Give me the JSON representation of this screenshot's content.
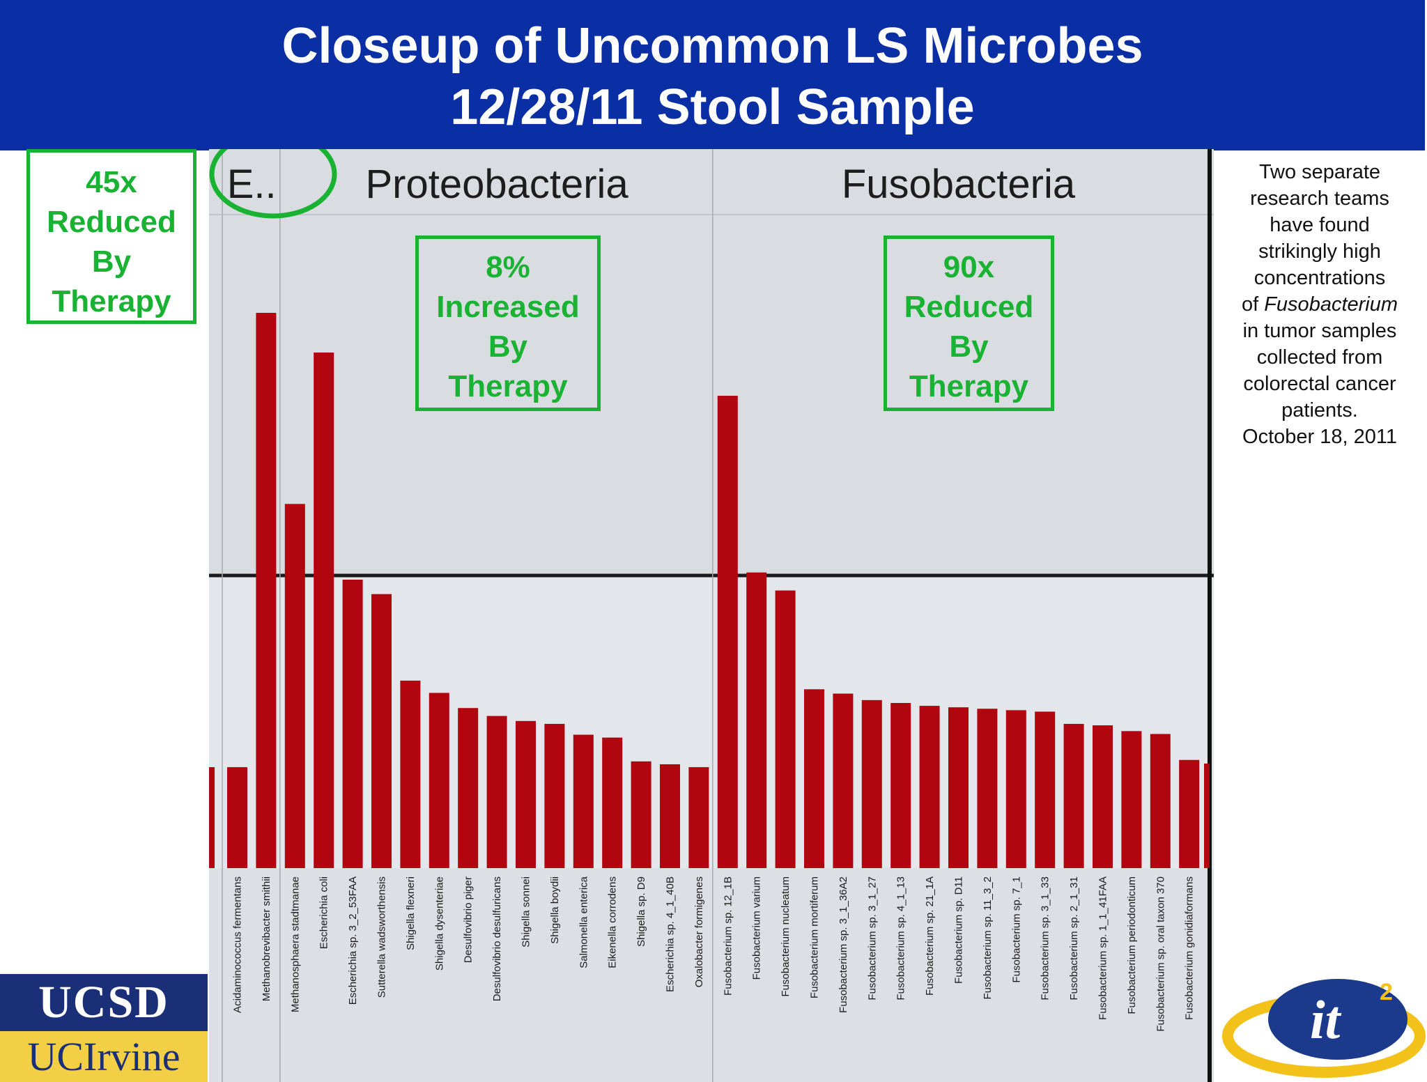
{
  "header": {
    "title_line1": "Closeup of Uncommon LS Microbes",
    "title_line2": "12/28/11 Stool Sample",
    "background_color": "#0a2ea4"
  },
  "callouts": {
    "left": [
      "45x",
      "Reduced",
      "By",
      "Therapy"
    ],
    "proteobacteria": [
      "8%",
      "Increased",
      "By",
      "Therapy"
    ],
    "fusobacteria": [
      "90x",
      "Reduced",
      "By",
      "Therapy"
    ],
    "color": "#19b233"
  },
  "side_note": {
    "line1": "Two separate",
    "line2": "research teams",
    "line3": "have found",
    "line4": "strikingly high",
    "line5": "concentrations",
    "line6_prefix": "of ",
    "line6_italic": "Fusobacterium",
    "line7": "in tumor samples",
    "line8": "collected from",
    "line9": "colorectal cancer",
    "line10": "patients.",
    "line11": "October 18, 2011"
  },
  "logos": {
    "ucsd": "UCSD",
    "uci": "UCIrvine",
    "it2_main": "it",
    "it2_sup": "2"
  },
  "chart_data": {
    "type": "bar",
    "title": "",
    "xlabel": "",
    "ylabel": "",
    "bar_color": "#b1060f",
    "phylum_groups": [
      {
        "label": "E..",
        "first_index": 1,
        "last_index": 2
      },
      {
        "label": "Proteobacteria",
        "first_index": 3,
        "last_index": 17
      },
      {
        "label": "Fusobacteria",
        "first_index": 18,
        "last_index": 34
      }
    ],
    "categories": [
      "Acidaminococcus fermentans",
      "Methanobrevibacter smithii",
      "Methanosphaera stadtmanae",
      "Escherichia coli",
      "Escherichia sp. 3_2_53FAA",
      "Sutterella wadsworthensis",
      "Shigella flexneri",
      "Shigella dysenteriae",
      "Desulfovibrio piger",
      "Desulfovibrio desulfuricans",
      "Shigella sonnei",
      "Shigella boydii",
      "Salmonella enterica",
      "Eikenella corrodens",
      "Shigella sp. D9",
      "Escherichia sp. 4_1_40B",
      "Oxalobacter formigenes",
      "Fusobacterium sp. 12_1B",
      "Fusobacterium varium",
      "Fusobacterium nucleatum",
      "Fusobacterium mortiferum",
      "Fusobacterium sp. 3_1_36A2",
      "Fusobacterium sp. 3_1_27",
      "Fusobacterium sp. 4_1_13",
      "Fusobacterium sp. 21_1A",
      "Fusobacterium sp. D11",
      "Fusobacterium sp. 11_3_2",
      "Fusobacterium sp. 7_1",
      "Fusobacterium sp. 3_1_33",
      "Fusobacterium sp. 2_1_31",
      "Fusobacterium sp. 1_1_41FAA",
      "Fusobacterium periodonticum",
      "Fusobacterium sp. oral taxon 370",
      "Fusobacterium gonidiaformans"
    ],
    "values": [
      140,
      770,
      505,
      715,
      400,
      380,
      260,
      243,
      222,
      211,
      204,
      200,
      185,
      181,
      148,
      144,
      140,
      655,
      410,
      385,
      248,
      242,
      233,
      229,
      225,
      223,
      221,
      219,
      217,
      200,
      198,
      190,
      186,
      150
    ]
  }
}
